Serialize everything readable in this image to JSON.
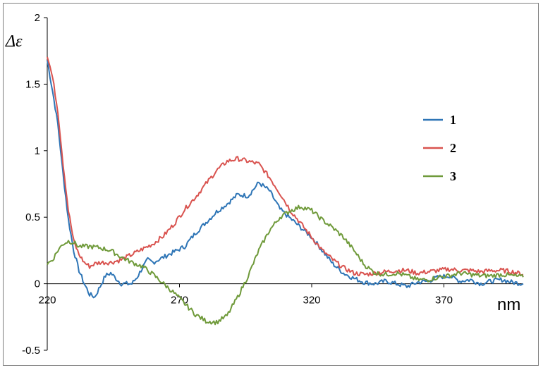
{
  "chart_data": {
    "type": "line",
    "title": "",
    "ylabel": "Δε",
    "xlabel": "nm",
    "xlim": [
      220,
      400
    ],
    "ylim": [
      -0.5,
      2
    ],
    "x_ticks": [
      "220",
      "270",
      "320",
      "370"
    ],
    "x_tick_values": [
      220,
      270,
      320,
      370
    ],
    "y_ticks": [
      "-0.5",
      "0",
      "0.5",
      "1",
      "1.5",
      "2"
    ],
    "y_tick_values": [
      -0.5,
      0,
      0.5,
      1,
      1.5,
      2
    ],
    "grid": false,
    "legend_position": "right",
    "series": [
      {
        "name": "1",
        "color": "#2e75b6",
        "x": [
          220,
          222,
          224,
          226,
          228,
          230,
          232,
          234,
          236,
          238,
          240,
          242,
          244,
          246,
          248,
          250,
          252,
          254,
          256,
          258,
          260,
          264,
          268,
          272,
          276,
          280,
          284,
          288,
          292,
          296,
          300,
          304,
          308,
          312,
          316,
          320,
          324,
          328,
          332,
          336,
          340,
          344,
          348,
          352,
          356,
          360,
          364,
          368,
          372,
          376,
          380,
          384,
          388,
          392,
          396,
          400
        ],
        "y": [
          1.68,
          1.45,
          1.2,
          0.82,
          0.48,
          0.25,
          0.1,
          0.0,
          -0.08,
          -0.1,
          -0.02,
          0.06,
          0.08,
          0.04,
          0.0,
          0.0,
          0.0,
          0.05,
          0.12,
          0.18,
          0.16,
          0.2,
          0.24,
          0.28,
          0.38,
          0.46,
          0.54,
          0.6,
          0.67,
          0.66,
          0.76,
          0.7,
          0.56,
          0.49,
          0.42,
          0.35,
          0.25,
          0.15,
          0.08,
          0.04,
          0.01,
          0.0,
          0.02,
          0.0,
          -0.02,
          0.01,
          0.02,
          0.05,
          0.06,
          0.02,
          0.03,
          0.0,
          0.02,
          0.03,
          0.01,
          0.0
        ]
      },
      {
        "name": "2",
        "color": "#d9534f",
        "x": [
          220,
          222,
          224,
          226,
          228,
          230,
          232,
          234,
          236,
          238,
          240,
          244,
          248,
          252,
          256,
          260,
          264,
          268,
          272,
          276,
          280,
          284,
          288,
          292,
          296,
          300,
          304,
          308,
          312,
          316,
          320,
          324,
          328,
          332,
          336,
          340,
          344,
          348,
          352,
          356,
          360,
          364,
          368,
          372,
          376,
          380,
          384,
          388,
          392,
          396,
          400
        ],
        "y": [
          1.72,
          1.55,
          1.3,
          0.9,
          0.55,
          0.32,
          0.22,
          0.16,
          0.13,
          0.15,
          0.16,
          0.16,
          0.18,
          0.22,
          0.26,
          0.3,
          0.36,
          0.45,
          0.56,
          0.65,
          0.75,
          0.85,
          0.92,
          0.94,
          0.92,
          0.9,
          0.8,
          0.68,
          0.55,
          0.45,
          0.35,
          0.25,
          0.18,
          0.12,
          0.08,
          0.07,
          0.08,
          0.09,
          0.1,
          0.1,
          0.08,
          0.09,
          0.1,
          0.11,
          0.1,
          0.1,
          0.09,
          0.1,
          0.1,
          0.09,
          0.07
        ]
      },
      {
        "name": "3",
        "color": "#6f9a3a",
        "x": [
          220,
          222,
          224,
          226,
          228,
          230,
          232,
          236,
          240,
          244,
          248,
          252,
          256,
          260,
          264,
          268,
          272,
          276,
          280,
          284,
          288,
          292,
          296,
          300,
          304,
          308,
          312,
          316,
          320,
          324,
          328,
          332,
          336,
          340,
          344,
          348,
          352,
          356,
          360,
          364,
          368,
          372,
          376,
          380,
          384,
          388,
          392,
          396,
          400
        ],
        "y": [
          0.15,
          0.18,
          0.25,
          0.3,
          0.32,
          0.31,
          0.28,
          0.28,
          0.27,
          0.25,
          0.2,
          0.16,
          0.13,
          0.07,
          0.0,
          -0.07,
          -0.15,
          -0.23,
          -0.28,
          -0.29,
          -0.24,
          -0.1,
          0.06,
          0.25,
          0.4,
          0.5,
          0.55,
          0.58,
          0.55,
          0.48,
          0.42,
          0.35,
          0.25,
          0.14,
          0.08,
          0.07,
          0.08,
          0.06,
          0.03,
          0.03,
          0.05,
          0.06,
          0.08,
          0.07,
          0.06,
          0.06,
          0.07,
          0.06,
          0.05
        ]
      }
    ]
  }
}
